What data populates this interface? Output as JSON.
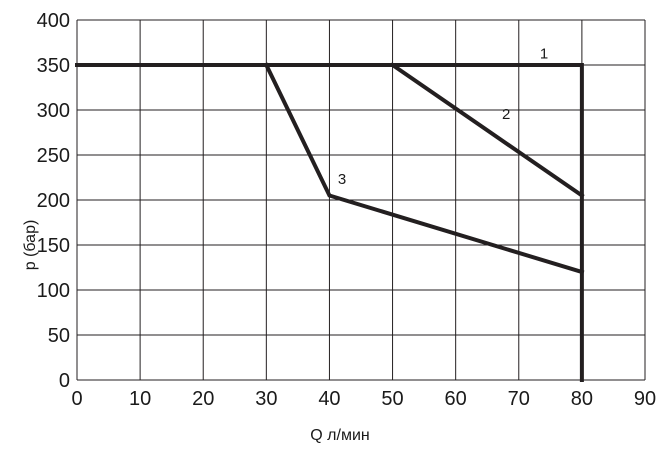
{
  "chart_data": {
    "type": "line",
    "title": "",
    "xlabel": "Q л/мин",
    "ylabel": "p (бар)",
    "xlim": [
      0,
      90
    ],
    "ylim": [
      0,
      400
    ],
    "x_ticks": [
      "0",
      "10",
      "20",
      "30",
      "40",
      "50",
      "60",
      "70",
      "80",
      "90"
    ],
    "y_ticks": [
      "0",
      "50",
      "100",
      "150",
      "200",
      "250",
      "300",
      "350",
      "400"
    ],
    "grid": true,
    "legend": "none",
    "series": [
      {
        "name": "1",
        "color": "#231f20",
        "points": [
          [
            0,
            350
          ],
          [
            80,
            350
          ],
          [
            80,
            0
          ]
        ],
        "label_at": [
          74,
          357
        ]
      },
      {
        "name": "2",
        "color": "#231f20",
        "points": [
          [
            50,
            350
          ],
          [
            80,
            205
          ]
        ],
        "label_at": [
          68,
          290
        ]
      },
      {
        "name": "3",
        "color": "#231f20",
        "points": [
          [
            30,
            350
          ],
          [
            40,
            205
          ],
          [
            80,
            120
          ]
        ],
        "label_at": [
          42,
          218
        ]
      }
    ]
  }
}
